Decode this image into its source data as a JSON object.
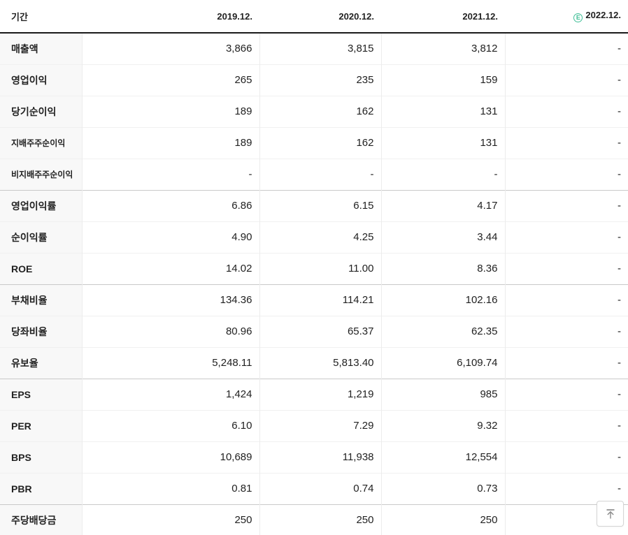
{
  "table": {
    "header": {
      "period_label": "기간",
      "columns": [
        "2019.12.",
        "2020.12.",
        "2021.12.",
        "2022.12."
      ],
      "estimate_badge": "E"
    },
    "rows": [
      {
        "label": "매출액",
        "values": [
          "3,866",
          "3,815",
          "3,812",
          "-"
        ],
        "small_label": false,
        "group_start": false
      },
      {
        "label": "영업이익",
        "values": [
          "265",
          "235",
          "159",
          "-"
        ],
        "small_label": false,
        "group_start": false
      },
      {
        "label": "당기순이익",
        "values": [
          "189",
          "162",
          "131",
          "-"
        ],
        "small_label": false,
        "group_start": false
      },
      {
        "label": "지배주주순이익",
        "values": [
          "189",
          "162",
          "131",
          "-"
        ],
        "small_label": true,
        "group_start": false
      },
      {
        "label": "비지배주주순이익",
        "values": [
          "-",
          "-",
          "-",
          "-"
        ],
        "small_label": true,
        "group_start": false
      },
      {
        "label": "영업이익률",
        "values": [
          "6.86",
          "6.15",
          "4.17",
          "-"
        ],
        "small_label": false,
        "group_start": true
      },
      {
        "label": "순이익률",
        "values": [
          "4.90",
          "4.25",
          "3.44",
          "-"
        ],
        "small_label": false,
        "group_start": false
      },
      {
        "label": "ROE",
        "values": [
          "14.02",
          "11.00",
          "8.36",
          "-"
        ],
        "small_label": false,
        "group_start": false
      },
      {
        "label": "부채비율",
        "values": [
          "134.36",
          "114.21",
          "102.16",
          "-"
        ],
        "small_label": false,
        "group_start": true
      },
      {
        "label": "당좌비율",
        "values": [
          "80.96",
          "65.37",
          "62.35",
          "-"
        ],
        "small_label": false,
        "group_start": false
      },
      {
        "label": "유보율",
        "values": [
          "5,248.11",
          "5,813.40",
          "6,109.74",
          "-"
        ],
        "small_label": false,
        "group_start": false
      },
      {
        "label": "EPS",
        "values": [
          "1,424",
          "1,219",
          "985",
          "-"
        ],
        "small_label": false,
        "group_start": true
      },
      {
        "label": "PER",
        "values": [
          "6.10",
          "7.29",
          "9.32",
          "-"
        ],
        "small_label": false,
        "group_start": false
      },
      {
        "label": "BPS",
        "values": [
          "10,689",
          "11,938",
          "12,554",
          "-"
        ],
        "small_label": false,
        "group_start": false
      },
      {
        "label": "PBR",
        "values": [
          "0.81",
          "0.74",
          "0.73",
          "-"
        ],
        "small_label": false,
        "group_start": false
      },
      {
        "label": "주당배당금",
        "values": [
          "250",
          "250",
          "250",
          "-"
        ],
        "small_label": false,
        "group_start": true
      }
    ]
  },
  "colors": {
    "estimate_accent": "#41bf97",
    "header_border": "#1a1a1a",
    "group_border": "#c9c9c9",
    "row_border": "#f0f0f0",
    "label_bg": "#f8f8f8",
    "text": "#222222"
  },
  "scroll_top_button": {
    "icon": "arrow-up-to-top"
  }
}
